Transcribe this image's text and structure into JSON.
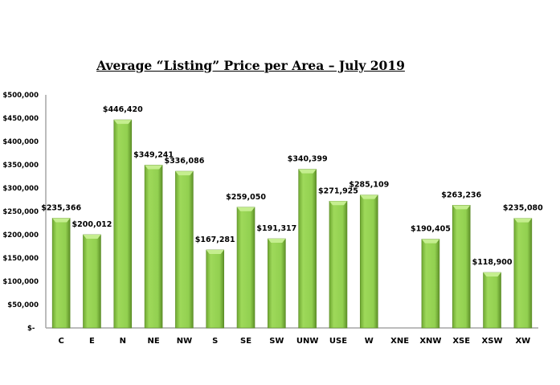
{
  "chart_data": {
    "type": "bar",
    "title": "Average “Listing” Price per Area – July 2019",
    "xlabel": "",
    "ylabel": "",
    "ylim": [
      0,
      500000
    ],
    "yticks": [
      0,
      50000,
      100000,
      150000,
      200000,
      250000,
      300000,
      350000,
      400000,
      450000,
      500000
    ],
    "ytick_labels": [
      "$-",
      "$50,000",
      "$100,000",
      "$150,000",
      "$200,000",
      "$250,000",
      "$300,000",
      "$350,000",
      "$400,000",
      "$450,000",
      "$500,000"
    ],
    "grid": false,
    "categories": [
      "C",
      "E",
      "N",
      "NE",
      "NW",
      "S",
      "SE",
      "SW",
      "UNW",
      "USE",
      "W",
      "XNE",
      "XNW",
      "XSE",
      "XSW",
      "XW"
    ],
    "values": [
      235366,
      200012,
      446420,
      349241,
      336086,
      167281,
      259050,
      191317,
      340399,
      271925,
      285109,
      null,
      190405,
      263236,
      118900,
      235080
    ],
    "data_labels": [
      "$235,366",
      "$200,012",
      "$446,420",
      "$349,241",
      "$336,086",
      "$167,281",
      "$259,050",
      "$191,317",
      "$340,399",
      "$271,925",
      "$285,109",
      "",
      "$190,405",
      "$263,236",
      "$118,900",
      "$235,080"
    ],
    "bar_color": "#92d050"
  }
}
